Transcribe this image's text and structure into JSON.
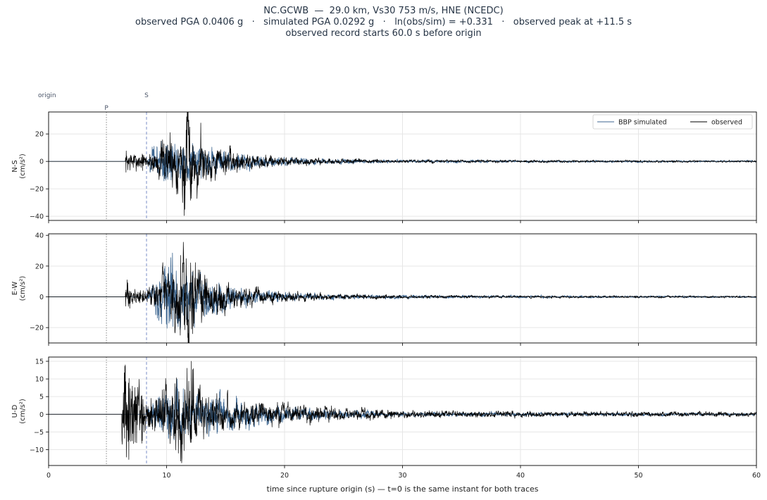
{
  "figure": {
    "title_line1": "NC.GCWB  —  29.0 km, Vs30 753 m/s, HNE (NCEDC)",
    "title_line2": "observed PGA 0.0406 g   ·   simulated PGA 0.0292 g   ·   ln(obs/sim) = +0.331   ·   observed peak at +11.5 s",
    "title_line3": "observed record starts 60.0 s before origin",
    "xlabel": "time since rupture origin (s)   —   t=0 is the same instant for both traces"
  },
  "colors": {
    "simulated": "#3d6690",
    "observed": "#000000",
    "p_marker": "#888888",
    "s_marker": "#7b8fc8",
    "grid": "#e6e6e6",
    "marker_label": "#4a5468"
  },
  "chart_data": {
    "type": "line",
    "x_range": [
      0,
      60
    ],
    "x_ticks": [
      0,
      10,
      20,
      30,
      40,
      50,
      60
    ],
    "grid": true,
    "legend": {
      "placement": "top-right",
      "entries": [
        "BBP simulated",
        "observed"
      ]
    },
    "markers": [
      {
        "label": "origin",
        "t": 0
      },
      {
        "label": "P",
        "t": 4.9
      },
      {
        "label": "S",
        "t": 8.3
      }
    ],
    "panels": [
      {
        "ylabel": "N-S\n(cm/s²)",
        "ylim": [
          -43,
          36
        ],
        "yticks": [
          -40,
          -20,
          0,
          20
        ],
        "series": [
          {
            "name": "BBP simulated",
            "envelope": [
              [
                8.3,
                0
              ],
              [
                8.8,
                11
              ],
              [
                10,
                19
              ],
              [
                11,
                15
              ],
              [
                12,
                13
              ],
              [
                14,
                9
              ],
              [
                16,
                6
              ],
              [
                18,
                4
              ],
              [
                20,
                3
              ],
              [
                25,
                1.6
              ],
              [
                30,
                1.2
              ],
              [
                40,
                0.9
              ],
              [
                50,
                0.7
              ],
              [
                58,
                0.6
              ]
            ]
          },
          {
            "name": "observed",
            "t_start": 6.5,
            "envelope": [
              [
                6.5,
                7
              ],
              [
                7.5,
                5
              ],
              [
                8.3,
                5
              ],
              [
                9,
                10
              ],
              [
                10,
                17
              ],
              [
                11,
                20
              ],
              [
                11.5,
                40
              ],
              [
                12,
                28
              ],
              [
                13,
                18
              ],
              [
                14,
                11
              ],
              [
                16,
                8
              ],
              [
                18,
                5
              ],
              [
                20,
                3
              ],
              [
                22,
                2.5
              ],
              [
                25,
                1.8
              ],
              [
                30,
                1.2
              ],
              [
                40,
                0.9
              ],
              [
                50,
                0.8
              ],
              [
                60,
                0.7
              ]
            ],
            "peaks": [
              [
                11.5,
                -39.5
              ],
              [
                11.7,
                32.5
              ],
              [
                12.1,
                -27
              ],
              [
                12.9,
                28
              ],
              [
                10.3,
                21
              ]
            ]
          }
        ]
      },
      {
        "ylabel": "E-W\n(cm/s²)",
        "ylim": [
          -30,
          41
        ],
        "yticks": [
          -20,
          0,
          20,
          40
        ],
        "series": [
          {
            "name": "BBP simulated",
            "envelope": [
              [
                8.3,
                0
              ],
              [
                8.8,
                8
              ],
              [
                10,
                27
              ],
              [
                11,
                22
              ],
              [
                12,
                17
              ],
              [
                14,
                11
              ],
              [
                16,
                6
              ],
              [
                18,
                4
              ],
              [
                20,
                3
              ],
              [
                25,
                1.5
              ],
              [
                30,
                1.2
              ],
              [
                40,
                0.8
              ],
              [
                50,
                0.7
              ],
              [
                60,
                0.6
              ]
            ],
            "peaks": [
              [
                10.5,
                28.5
              ]
            ]
          },
          {
            "name": "observed",
            "t_start": 6.5,
            "envelope": [
              [
                6.5,
                8
              ],
              [
                7.5,
                4
              ],
              [
                8.3,
                4
              ],
              [
                9,
                9
              ],
              [
                10,
                16
              ],
              [
                11,
                22
              ],
              [
                11.8,
                38
              ],
              [
                12.5,
                20
              ],
              [
                14,
                12
              ],
              [
                16,
                7
              ],
              [
                18,
                5
              ],
              [
                20,
                3
              ],
              [
                22,
                2.5
              ],
              [
                25,
                1.6
              ],
              [
                30,
                1.1
              ],
              [
                40,
                0.8
              ],
              [
                50,
                0.7
              ],
              [
                60,
                0.6
              ]
            ],
            "peaks": [
              [
                11.8,
                38
              ],
              [
                11.8,
                -26.5
              ],
              [
                12.2,
                -24
              ],
              [
                11.2,
                27
              ]
            ]
          }
        ]
      },
      {
        "ylabel": "U-D\n(cm/s²)",
        "ylim": [
          -14.5,
          16.2
        ],
        "yticks": [
          -10,
          -5,
          0,
          5,
          10,
          15
        ],
        "series": [
          {
            "name": "BBP simulated",
            "envelope": [
              [
                8.3,
                0
              ],
              [
                8.8,
                3.5
              ],
              [
                10,
                7
              ],
              [
                11,
                8
              ],
              [
                12,
                6
              ],
              [
                14,
                5
              ],
              [
                16,
                4
              ],
              [
                18,
                3
              ],
              [
                20,
                2
              ],
              [
                25,
                1
              ],
              [
                30,
                0.6
              ],
              [
                40,
                0.5
              ],
              [
                50,
                0.4
              ],
              [
                60,
                0.3
              ]
            ]
          },
          {
            "name": "observed",
            "t_start": 6.2,
            "envelope": [
              [
                6.2,
                10
              ],
              [
                6.8,
                12
              ],
              [
                7.4,
                8
              ],
              [
                8.3,
                5
              ],
              [
                9,
                6
              ],
              [
                10,
                8
              ],
              [
                11,
                11
              ],
              [
                12,
                12
              ],
              [
                13,
                7
              ],
              [
                14,
                5
              ],
              [
                16,
                4
              ],
              [
                18,
                3
              ],
              [
                20,
                3
              ],
              [
                22,
                2.5
              ],
              [
                25,
                1.8
              ],
              [
                30,
                1.1
              ],
              [
                40,
                0.8
              ],
              [
                50,
                0.7
              ],
              [
                60,
                0.6
              ]
            ],
            "peaks": [
              [
                12.1,
                15
              ],
              [
                6.8,
                -12.8
              ],
              [
                11.0,
                -11
              ],
              [
                6.5,
                14
              ]
            ]
          }
        ]
      }
    ]
  }
}
